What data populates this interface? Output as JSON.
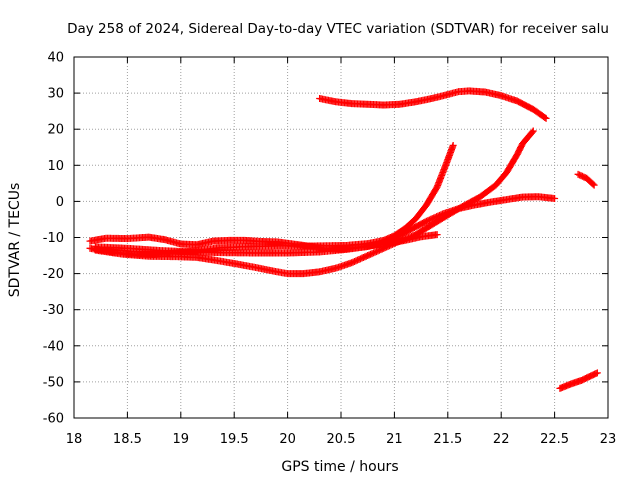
{
  "chart_data": {
    "type": "scatter",
    "title": "Day 258 of 2024, Sidereal Day-to-day VTEC variation (SDTVAR) for receiver salu",
    "xlabel": "GPS time / hours",
    "ylabel": "SDTVAR / TECUs",
    "xlim": [
      18,
      23
    ],
    "ylim": [
      -60,
      40
    ],
    "xticks": [
      18,
      18.5,
      19,
      19.5,
      20,
      20.5,
      21,
      21.5,
      22,
      22.5,
      23
    ],
    "yticks": [
      -60,
      -50,
      -40,
      -30,
      -20,
      -10,
      0,
      10,
      20,
      30,
      40
    ],
    "grid": true,
    "marker": "+",
    "color": "#ff0000",
    "series": [
      {
        "name": "s1",
        "points": [
          [
            20.3,
            28.5
          ],
          [
            20.45,
            27.6
          ],
          [
            20.6,
            27.1
          ],
          [
            20.75,
            26.9
          ],
          [
            20.9,
            26.7
          ],
          [
            21.05,
            26.9
          ],
          [
            21.2,
            27.6
          ],
          [
            21.35,
            28.5
          ],
          [
            21.5,
            29.6
          ],
          [
            21.6,
            30.4
          ],
          [
            21.7,
            30.6
          ],
          [
            21.85,
            30.3
          ],
          [
            22.0,
            29.3
          ],
          [
            22.15,
            27.8
          ],
          [
            22.3,
            25.5
          ],
          [
            22.42,
            23.0
          ]
        ]
      },
      {
        "name": "s2",
        "points": [
          [
            18.15,
            -11
          ],
          [
            18.3,
            -10.2
          ],
          [
            18.5,
            -10.3
          ],
          [
            18.7,
            -9.9
          ],
          [
            18.85,
            -10.6
          ],
          [
            19.0,
            -11.8
          ],
          [
            19.15,
            -12
          ],
          [
            19.3,
            -11
          ],
          [
            19.45,
            -10.8
          ],
          [
            19.6,
            -10.8
          ],
          [
            19.75,
            -11.1
          ],
          [
            19.9,
            -11.2
          ],
          [
            20.05,
            -11.8
          ],
          [
            20.2,
            -12.4
          ],
          [
            20.35,
            -13
          ],
          [
            20.5,
            -13.3
          ],
          [
            20.65,
            -12.8
          ],
          [
            20.8,
            -12.2
          ],
          [
            20.95,
            -11.6
          ],
          [
            21.1,
            -10.8
          ],
          [
            21.25,
            -9.8
          ],
          [
            21.4,
            -9.2
          ]
        ]
      },
      {
        "name": "s3",
        "points": [
          [
            18.15,
            -13
          ],
          [
            18.35,
            -14
          ],
          [
            18.55,
            -14.6
          ],
          [
            18.75,
            -14.7
          ],
          [
            18.95,
            -14.3
          ],
          [
            19.15,
            -13.6
          ],
          [
            19.35,
            -12.9
          ],
          [
            19.55,
            -12.6
          ],
          [
            19.75,
            -12.4
          ],
          [
            19.95,
            -12.3
          ],
          [
            20.15,
            -12.4
          ],
          [
            20.35,
            -12.3
          ],
          [
            20.55,
            -12.2
          ],
          [
            20.75,
            -11.7
          ],
          [
            20.9,
            -10.8
          ],
          [
            21.0,
            -9.5
          ],
          [
            21.1,
            -7.5
          ],
          [
            21.2,
            -4.8
          ],
          [
            21.3,
            -1
          ],
          [
            21.4,
            4
          ],
          [
            21.48,
            10
          ],
          [
            21.55,
            15.5
          ]
        ]
      },
      {
        "name": "s4",
        "points": [
          [
            18.2,
            -13.5
          ],
          [
            18.45,
            -14.6
          ],
          [
            18.7,
            -15.2
          ],
          [
            18.95,
            -15.3
          ],
          [
            19.15,
            -15.5
          ],
          [
            19.3,
            -16.2
          ],
          [
            19.5,
            -17.2
          ],
          [
            19.7,
            -18.3
          ],
          [
            19.9,
            -19.5
          ],
          [
            20.0,
            -20
          ],
          [
            20.15,
            -20
          ],
          [
            20.3,
            -19.5
          ],
          [
            20.45,
            -18.5
          ],
          [
            20.6,
            -17
          ],
          [
            20.75,
            -15
          ],
          [
            20.9,
            -13
          ],
          [
            21.05,
            -11
          ],
          [
            21.2,
            -9.2
          ],
          [
            21.35,
            -6.5
          ],
          [
            21.5,
            -3.8
          ],
          [
            21.65,
            -1.2
          ],
          [
            21.8,
            1.2
          ],
          [
            21.95,
            4.5
          ],
          [
            22.05,
            8
          ],
          [
            22.15,
            13
          ],
          [
            22.2,
            16
          ],
          [
            22.3,
            19.5
          ]
        ]
      },
      {
        "name": "s5",
        "points": [
          [
            18.2,
            -12.6
          ],
          [
            18.5,
            -13
          ],
          [
            18.8,
            -13.6
          ],
          [
            19.1,
            -14
          ],
          [
            19.4,
            -14.2
          ],
          [
            19.7,
            -14.3
          ],
          [
            20.0,
            -14.3
          ],
          [
            20.3,
            -14
          ],
          [
            20.55,
            -13.3
          ],
          [
            20.75,
            -12.5
          ],
          [
            20.9,
            -11.5
          ],
          [
            21.05,
            -9.5
          ],
          [
            21.15,
            -7.8
          ],
          [
            21.3,
            -5.5
          ],
          [
            21.45,
            -3.5
          ],
          [
            21.6,
            -2
          ],
          [
            21.75,
            -1
          ],
          [
            21.9,
            -0.2
          ],
          [
            22.05,
            0.5
          ],
          [
            22.2,
            1.2
          ],
          [
            22.35,
            1.3
          ],
          [
            22.5,
            0.8
          ]
        ]
      },
      {
        "name": "s6",
        "points": [
          [
            22.72,
            7.5
          ],
          [
            22.8,
            6.4
          ],
          [
            22.87,
            4.5
          ]
        ]
      },
      {
        "name": "s7",
        "points": [
          [
            22.55,
            -51.8
          ],
          [
            22.65,
            -50.6
          ],
          [
            22.75,
            -49.6
          ],
          [
            22.85,
            -48.2
          ],
          [
            22.9,
            -47.5
          ]
        ]
      }
    ]
  }
}
